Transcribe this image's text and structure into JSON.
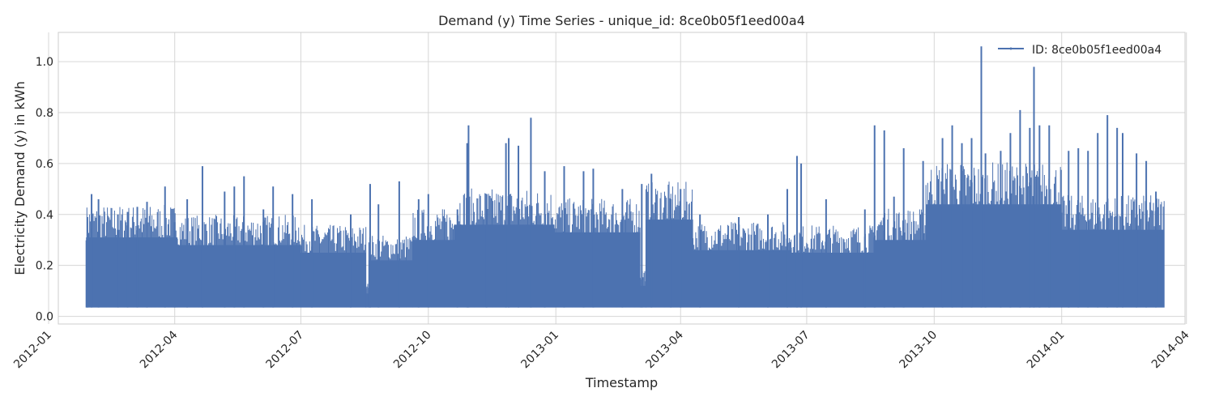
{
  "chart_data": {
    "type": "line",
    "title": "Demand (y) Time Series - unique_id: 8ce0b05f1eed00a4",
    "xlabel": "Timestamp",
    "ylabel": "Electricity Demand (y) in kWh",
    "x_range": [
      "2012-01-08",
      "2014-03-31"
    ],
    "ylim": [
      -0.03,
      1.115
    ],
    "grid": true,
    "legend_position": "top-right",
    "x_ticks": [
      "2012-01",
      "2012-04",
      "2012-07",
      "2012-10",
      "2013-01",
      "2013-04",
      "2013-07",
      "2013-10",
      "2014-01",
      "2014-04"
    ],
    "y_ticks": [
      "0.0",
      "0.2",
      "0.4",
      "0.6",
      "0.8",
      "1.0"
    ],
    "series": [
      {
        "name": "ID: 8ce0b05f1eed00a4",
        "color": "#4c72b0",
        "floor": 0.035,
        "peaks": [
          [
            "2012-01-29",
            0.39
          ],
          [
            "2012-02-01",
            0.48
          ],
          [
            "2012-02-06",
            0.46
          ],
          [
            "2012-02-20",
            0.4
          ],
          [
            "2012-02-27",
            0.41
          ],
          [
            "2012-03-05",
            0.43
          ],
          [
            "2012-03-12",
            0.45
          ],
          [
            "2012-03-25",
            0.51
          ],
          [
            "2012-04-01",
            0.37
          ],
          [
            "2012-04-10",
            0.46
          ],
          [
            "2012-04-21",
            0.59
          ],
          [
            "2012-05-07",
            0.49
          ],
          [
            "2012-05-14",
            0.51
          ],
          [
            "2012-05-21",
            0.55
          ],
          [
            "2012-06-04",
            0.42
          ],
          [
            "2012-06-11",
            0.51
          ],
          [
            "2012-06-25",
            0.48
          ],
          [
            "2012-07-09",
            0.46
          ],
          [
            "2012-08-06",
            0.4
          ],
          [
            "2012-08-20",
            0.52
          ],
          [
            "2012-08-26",
            0.44
          ],
          [
            "2012-09-10",
            0.53
          ],
          [
            "2012-09-24",
            0.46
          ],
          [
            "2012-10-01",
            0.48
          ],
          [
            "2012-10-22",
            0.42
          ],
          [
            "2012-10-29",
            0.68
          ],
          [
            "2012-10-30",
            0.75
          ],
          [
            "2012-11-12",
            0.48
          ],
          [
            "2012-11-26",
            0.68
          ],
          [
            "2012-11-28",
            0.7
          ],
          [
            "2012-12-05",
            0.67
          ],
          [
            "2012-12-14",
            0.78
          ],
          [
            "2012-12-24",
            0.57
          ],
          [
            "2013-01-07",
            0.59
          ],
          [
            "2013-01-21",
            0.57
          ],
          [
            "2013-01-28",
            0.58
          ],
          [
            "2013-02-18",
            0.5
          ],
          [
            "2013-03-04",
            0.52
          ],
          [
            "2013-03-11",
            0.56
          ],
          [
            "2013-03-25",
            0.46
          ],
          [
            "2013-04-01",
            0.5
          ],
          [
            "2013-04-15",
            0.4
          ],
          [
            "2013-05-13",
            0.39
          ],
          [
            "2013-06-03",
            0.4
          ],
          [
            "2013-06-17",
            0.5
          ],
          [
            "2013-06-24",
            0.63
          ],
          [
            "2013-06-27",
            0.6
          ],
          [
            "2013-07-15",
            0.46
          ],
          [
            "2013-08-12",
            0.42
          ],
          [
            "2013-08-19",
            0.75
          ],
          [
            "2013-08-26",
            0.73
          ],
          [
            "2013-09-02",
            0.47
          ],
          [
            "2013-09-09",
            0.66
          ],
          [
            "2013-09-23",
            0.61
          ],
          [
            "2013-10-07",
            0.7
          ],
          [
            "2013-10-14",
            0.75
          ],
          [
            "2013-10-21",
            0.68
          ],
          [
            "2013-10-28",
            0.7
          ],
          [
            "2013-11-04",
            1.06
          ],
          [
            "2013-11-07",
            0.64
          ],
          [
            "2013-11-18",
            0.65
          ],
          [
            "2013-11-25",
            0.72
          ],
          [
            "2013-12-02",
            0.81
          ],
          [
            "2013-12-09",
            0.74
          ],
          [
            "2013-12-12",
            0.98
          ],
          [
            "2013-12-16",
            0.75
          ],
          [
            "2013-12-23",
            0.75
          ],
          [
            "2014-01-06",
            0.65
          ],
          [
            "2014-01-13",
            0.66
          ],
          [
            "2014-01-20",
            0.65
          ],
          [
            "2014-01-27",
            0.72
          ],
          [
            "2014-02-03",
            0.79
          ],
          [
            "2014-02-10",
            0.74
          ],
          [
            "2014-02-14",
            0.72
          ],
          [
            "2014-02-24",
            0.64
          ],
          [
            "2014-03-03",
            0.61
          ],
          [
            "2014-03-10",
            0.49
          ]
        ],
        "segments": [
          {
            "start": "2012-01-28",
            "end": "2012-04-03",
            "high": 0.31
          },
          {
            "start": "2012-04-03",
            "end": "2012-07-01",
            "high": 0.28
          },
          {
            "start": "2012-07-01",
            "end": "2012-08-17",
            "high": 0.25
          },
          {
            "start": "2012-08-17",
            "end": "2012-08-19",
            "high": 0.09
          },
          {
            "start": "2012-08-19",
            "end": "2012-09-20",
            "high": 0.22
          },
          {
            "start": "2012-09-20",
            "end": "2012-10-20",
            "high": 0.3
          },
          {
            "start": "2012-10-20",
            "end": "2012-12-31",
            "high": 0.36
          },
          {
            "start": "2012-12-31",
            "end": "2013-03-03",
            "high": 0.33
          },
          {
            "start": "2013-03-03",
            "end": "2013-03-07",
            "high": 0.12
          },
          {
            "start": "2013-03-07",
            "end": "2013-04-10",
            "high": 0.38
          },
          {
            "start": "2013-04-10",
            "end": "2013-06-20",
            "high": 0.26
          },
          {
            "start": "2013-06-20",
            "end": "2013-08-20",
            "high": 0.25
          },
          {
            "start": "2013-08-20",
            "end": "2013-09-25",
            "high": 0.3
          },
          {
            "start": "2013-09-25",
            "end": "2014-01-01",
            "high": 0.44
          },
          {
            "start": "2014-01-01",
            "end": "2014-03-16",
            "high": 0.34
          }
        ]
      }
    ]
  }
}
